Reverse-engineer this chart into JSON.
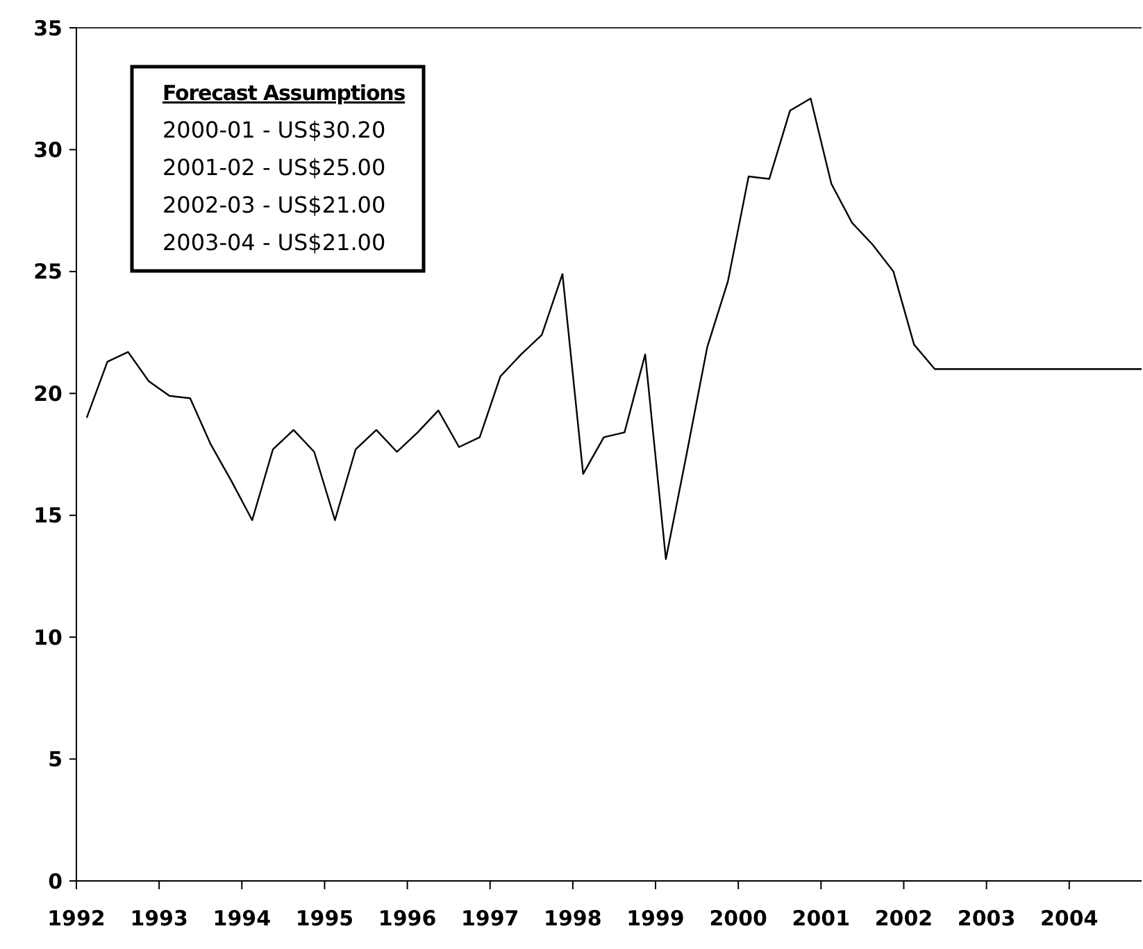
{
  "chart_data": {
    "type": "line",
    "x": [
      1992.125,
      1992.375,
      1992.625,
      1992.875,
      1993.125,
      1993.375,
      1993.625,
      1993.875,
      1994.125,
      1994.375,
      1994.625,
      1994.875,
      1995.125,
      1995.375,
      1995.625,
      1995.875,
      1996.125,
      1996.375,
      1996.625,
      1996.875,
      1997.125,
      1997.375,
      1997.625,
      1997.875,
      1998.125,
      1998.375,
      1998.625,
      1998.875,
      1999.125,
      1999.375,
      1999.625,
      1999.875,
      2000.125,
      2000.375,
      2000.625,
      2000.875,
      2001.125,
      2001.375,
      2001.625,
      2001.875,
      2002.125,
      2002.375,
      2002.625,
      2002.875,
      2003.125,
      2003.375,
      2003.625,
      2003.875,
      2004.125,
      2004.375,
      2004.625,
      2004.875
    ],
    "series": [
      {
        "color": "#000000",
        "values": [
          19.0,
          21.3,
          21.7,
          20.5,
          19.9,
          19.8,
          17.9,
          16.4,
          14.8,
          17.7,
          18.5,
          17.6,
          14.8,
          17.7,
          18.5,
          17.6,
          18.4,
          19.3,
          17.8,
          18.2,
          20.7,
          21.6,
          22.4,
          24.9,
          16.7,
          18.2,
          18.4,
          21.6,
          13.2,
          17.5,
          21.9,
          24.6,
          28.9,
          28.8,
          31.6,
          32.1,
          28.6,
          27.0,
          26.1,
          25.0,
          22.0,
          21.0,
          21.0,
          21.0,
          21.0,
          21.0,
          21.0,
          21.0,
          21.0,
          21.0,
          21.0,
          21.0
        ]
      }
    ],
    "xlim": [
      1992,
      2004.875
    ],
    "xticks": [
      1992,
      1993,
      1994,
      1995,
      1996,
      1997,
      1998,
      1999,
      2000,
      2001,
      2002,
      2003,
      2004
    ],
    "ylim": [
      0,
      35
    ],
    "yticks": [
      0,
      5,
      10,
      15,
      20,
      25,
      30,
      35
    ],
    "grid": false,
    "marker": "none",
    "line_style": "solid",
    "annotations": [
      "Forecast Assumptions",
      "2000-01 - US$30.20",
      "2001-02 - US$25.00",
      "2002-03 - US$21.00",
      "2003-04 - US$21.00"
    ]
  }
}
